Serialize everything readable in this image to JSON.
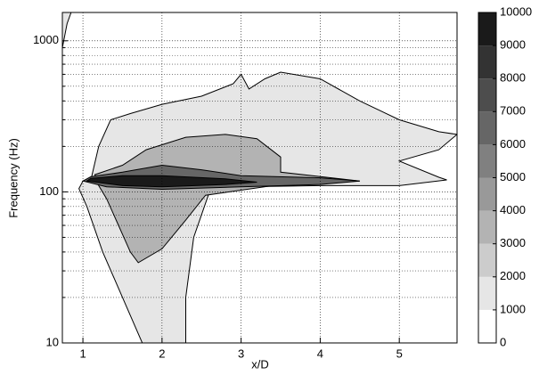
{
  "chart_data": {
    "type": "contour",
    "xlabel": "x/D",
    "ylabel": "Frequency (Hz)",
    "xlim": [
      0.74,
      5.73
    ],
    "xticks": [
      1,
      2,
      3,
      4,
      5
    ],
    "ylim": [
      10,
      1540
    ],
    "yscale": "log",
    "yticks": [
      10,
      100,
      1000
    ],
    "minor_yticks": [
      20,
      30,
      40,
      50,
      60,
      70,
      80,
      90,
      200,
      300,
      400,
      500,
      600,
      700,
      800,
      900
    ],
    "grid": true,
    "colormap": [
      "#ffffff",
      "#000000"
    ],
    "clim": [
      0,
      10000
    ],
    "cticks": [
      0,
      1000,
      2000,
      3000,
      4000,
      5000,
      6000,
      7000,
      8000,
      9000,
      10000
    ],
    "regions": [
      {
        "level": 1000,
        "x": [
          1.0,
          1.1,
          1.2,
          1.35,
          1.6,
          2.0,
          2.5,
          2.9,
          3.0,
          3.1,
          3.3,
          3.5,
          4.0,
          4.5,
          5.0,
          5.5,
          5.73,
          5.5,
          5.0,
          5.5,
          5.6,
          5.0,
          4.0,
          3.0,
          2.6,
          2.4,
          2.3,
          2.3,
          1.75,
          1.5,
          1.25,
          1.05,
          0.95
        ],
        "y": [
          118,
          120,
          200,
          300,
          330,
          380,
          430,
          520,
          600,
          480,
          560,
          620,
          560,
          400,
          300,
          250,
          240,
          190,
          160,
          125,
          120,
          110,
          110,
          108,
          100,
          50,
          20,
          10,
          10,
          20,
          40,
          80,
          105
        ]
      },
      {
        "level": 1000,
        "x": [
          0.74,
          0.8,
          0.85,
          0.74
        ],
        "y": [
          900,
          1300,
          1540,
          1540
        ]
      },
      {
        "level": 3000,
        "x": [
          1.2,
          1.3,
          1.45,
          1.6,
          1.7,
          2.0,
          2.3,
          2.55,
          3.5,
          4.5,
          3.5,
          3.5,
          3.2,
          2.8,
          2.3,
          1.8,
          1.5,
          1.15
        ],
        "y": [
          110,
          90,
          60,
          40,
          34,
          42,
          65,
          95,
          112,
          118,
          135,
          170,
          225,
          240,
          230,
          190,
          150,
          130
        ]
      },
      {
        "level": 6000,
        "x": [
          1.0,
          1.3,
          2.0,
          3.0,
          4.0,
          4.5,
          4.0,
          3.0,
          2.5,
          2.0,
          1.5,
          1.1
        ],
        "y": [
          118,
          108,
          104,
          108,
          112,
          118,
          124,
          128,
          140,
          150,
          135,
          126
        ]
      },
      {
        "level": 9000,
        "x": [
          1.05,
          1.5,
          2.0,
          2.8,
          3.2,
          2.8,
          2.0,
          1.5,
          1.1
        ],
        "y": [
          118,
          110,
          108,
          112,
          116,
          122,
          128,
          128,
          123
        ]
      }
    ]
  }
}
